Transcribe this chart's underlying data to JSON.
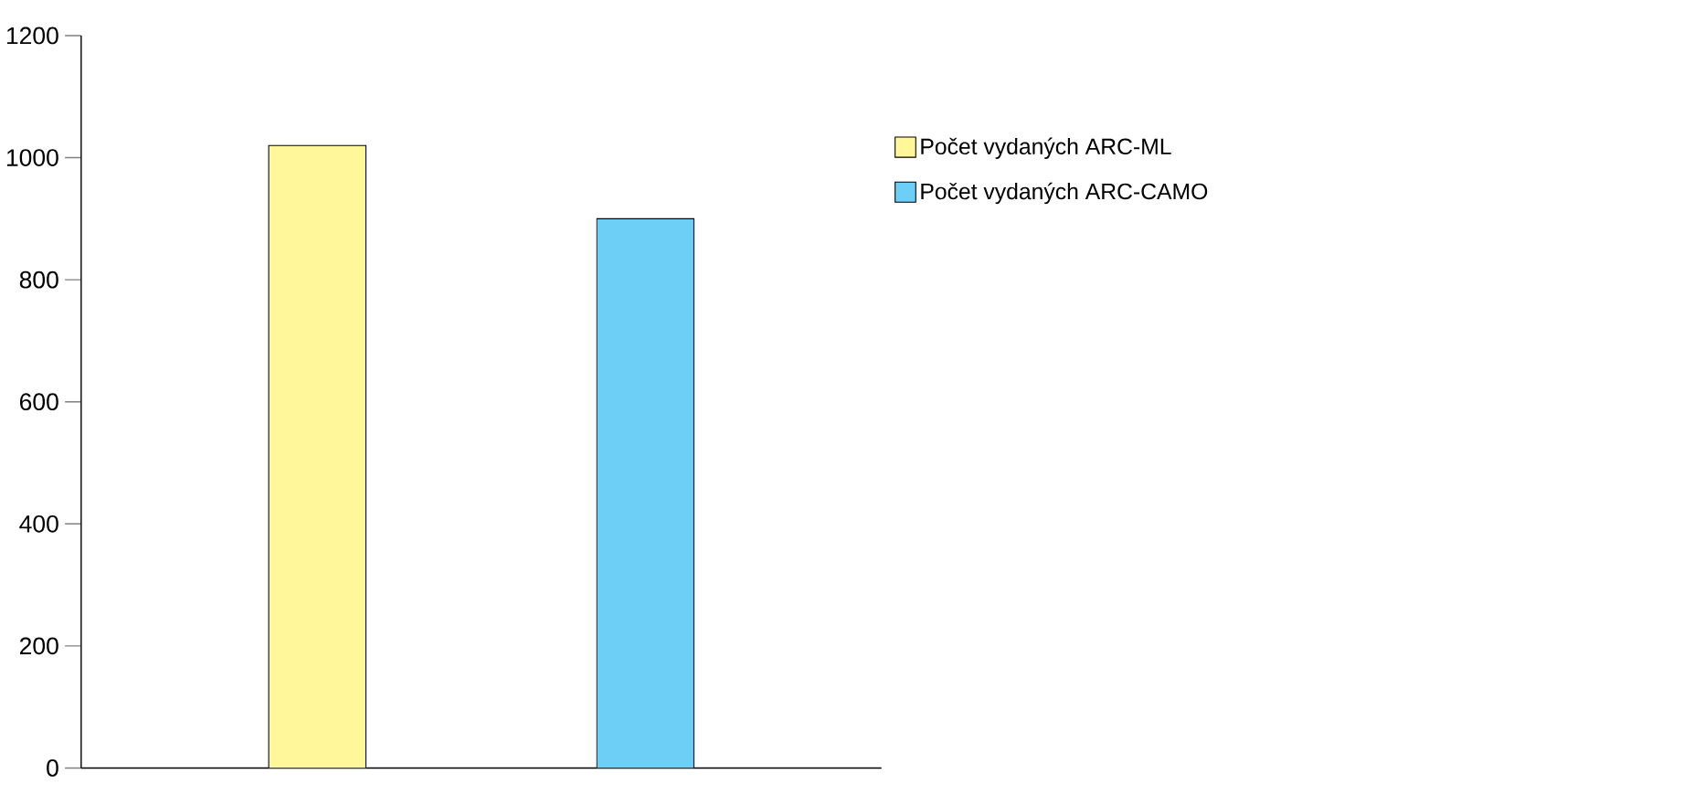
{
  "chart_data": {
    "type": "bar",
    "categories": [
      null,
      null
    ],
    "series": [
      {
        "name": "Počet vydaných ARC-ML",
        "color": "#fff799",
        "values": [
          1020,
          null
        ]
      },
      {
        "name": "Počet vydaných ARC-CAMO",
        "color": "#6dcff6",
        "values": [
          null,
          900
        ]
      }
    ],
    "ylim": [
      0,
      1200
    ],
    "yticks": [
      0,
      200,
      400,
      600,
      800,
      1000,
      1200
    ],
    "grid": false,
    "legend": "right"
  }
}
